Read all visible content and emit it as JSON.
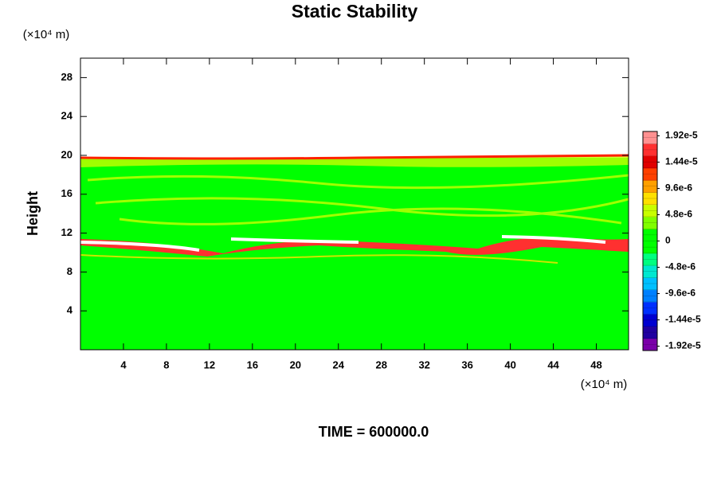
{
  "chart_data": {
    "type": "contour",
    "title": "Static Stability",
    "y_label": "Height",
    "x_unit": "(×10⁴ m)",
    "y_unit": "(×10⁴ m)",
    "footer": "TIME = 600000.0",
    "xlim": [
      0,
      51
    ],
    "ylim": [
      0,
      30
    ],
    "xticks": [
      4,
      8,
      12,
      16,
      20,
      24,
      28,
      32,
      36,
      40,
      44,
      48
    ],
    "yticks": [
      4,
      8,
      12,
      16,
      20,
      24,
      28
    ],
    "colorbar": {
      "clim": [
        -2e-05,
        2e-05
      ],
      "colors": [
        "#7a00a8",
        "#2000a0",
        "#0000d0",
        "#0030ff",
        "#0080ff",
        "#00c0ff",
        "#00e8d0",
        "#00ff80",
        "#00ff00",
        "#00ff00",
        "#80ff00",
        "#c8ff00",
        "#ffe000",
        "#ffa000",
        "#ff4000",
        "#e00000",
        "#ff3030",
        "#ff9090"
      ],
      "ticks": [
        {
          "value": 1.92e-05,
          "label": "1.92e-5"
        },
        {
          "value": 1.44e-05,
          "label": "1.44e-5"
        },
        {
          "value": 9.6e-06,
          "label": "9.6e-6"
        },
        {
          "value": 4.8e-06,
          "label": "4.8e-6"
        },
        0,
        {
          "value": -4.8e-06,
          "label": "-4.8e-6"
        },
        {
          "value": -9.6e-06,
          "label": "-9.6e-6"
        },
        {
          "value": -1.44e-05,
          "label": "-1.44e-5"
        },
        {
          "value": -1.92e-05,
          "label": "-1.92e-5"
        }
      ]
    }
  }
}
